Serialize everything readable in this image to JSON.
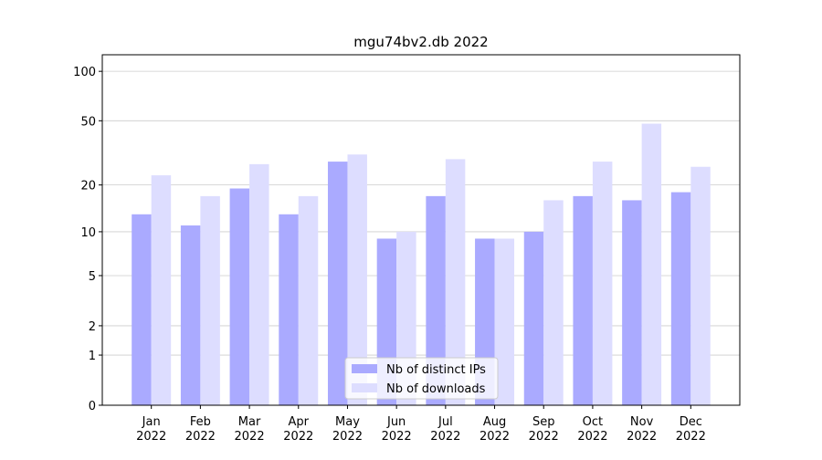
{
  "chart_data": {
    "type": "bar",
    "title": "mgu74bv2.db 2022",
    "categories": [
      "Jan\n2022",
      "Feb\n2022",
      "Mar\n2022",
      "Apr\n2022",
      "May\n2022",
      "Jun\n2022",
      "Jul\n2022",
      "Aug\n2022",
      "Sep\n2022",
      "Oct\n2022",
      "Nov\n2022",
      "Dec\n2022"
    ],
    "series": [
      {
        "name": "Nb of distinct IPs",
        "color": "#aaaaff",
        "values": [
          13,
          11,
          19,
          13,
          28,
          9,
          17,
          9,
          10,
          17,
          16,
          18
        ]
      },
      {
        "name": "Nb of downloads",
        "color": "#ddddff",
        "values": [
          23,
          17,
          27,
          17,
          31,
          10,
          29,
          9,
          16,
          28,
          48,
          26
        ]
      }
    ],
    "yscale": "log1p",
    "ylim": [
      0,
      126
    ],
    "yticks": [
      0,
      1,
      2,
      5,
      10,
      20,
      50,
      100
    ],
    "grid": true,
    "legend": "lower center"
  }
}
